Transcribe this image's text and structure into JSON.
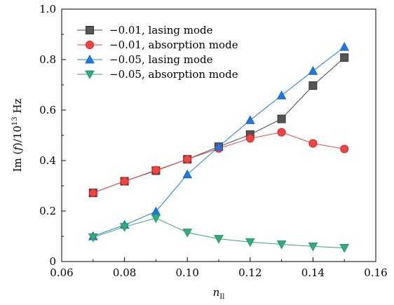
{
  "chart_data": {
    "type": "line",
    "xlabel_main": "n",
    "xlabel_sub": "Il",
    "ylabel_pre": "Im (",
    "ylabel_var": "f",
    "ylabel_mid": ")/10",
    "ylabel_exp": "13",
    "ylabel_unit": " Hz",
    "xlim": [
      0.06,
      0.16
    ],
    "ylim": [
      0,
      1.0
    ],
    "x_ticks": [
      "0.06",
      "0.08",
      "0.10",
      "0.12",
      "0.14",
      "0.16"
    ],
    "y_ticks": [
      "0",
      "0.2",
      "0.4",
      "0.6",
      "0.8",
      "1.0"
    ],
    "x_tick_values": [
      0.06,
      0.08,
      0.1,
      0.12,
      0.14,
      0.16
    ],
    "y_tick_values": [
      0,
      0.2,
      0.4,
      0.6,
      0.8,
      1.0
    ],
    "legend_position": "top-left",
    "series": [
      {
        "name": "−0.01, lasing mode",
        "marker": "square",
        "color": "#555555",
        "edge": "#333333",
        "line_color": "#444444",
        "x": [
          0.07,
          0.08,
          0.09,
          0.1,
          0.11,
          0.12,
          0.13,
          0.14,
          0.15
        ],
        "y": [
          0.272,
          0.318,
          0.36,
          0.405,
          0.455,
          0.503,
          0.565,
          0.697,
          0.808
        ]
      },
      {
        "name": "−0.01, absorption mode",
        "marker": "circle",
        "color": "#ee4444",
        "edge": "#dd2222",
        "line_color": "#ee4444",
        "x": [
          0.07,
          0.08,
          0.09,
          0.1,
          0.11,
          0.12,
          0.13,
          0.14,
          0.15
        ],
        "y": [
          0.272,
          0.318,
          0.362,
          0.405,
          0.448,
          0.488,
          0.512,
          0.468,
          0.446
        ]
      },
      {
        "name": "−0.05, lasing mode",
        "marker": "triangle-up",
        "color": "#2277dd",
        "edge": "#1166cc",
        "line_color": "#2277dd",
        "x": [
          0.07,
          0.08,
          0.09,
          0.1,
          0.11,
          0.12,
          0.13,
          0.14,
          0.15
        ],
        "y": [
          0.1,
          0.145,
          0.198,
          0.345,
          0.455,
          0.56,
          0.658,
          0.755,
          0.85
        ]
      },
      {
        "name": "−0.05, absorption mode",
        "marker": "triangle-down",
        "color": "#33aa77",
        "edge": "#229966",
        "line_color": "#33aa77",
        "x": [
          0.07,
          0.08,
          0.09,
          0.1,
          0.11,
          0.12,
          0.13,
          0.14,
          0.15
        ],
        "y": [
          0.096,
          0.137,
          0.172,
          0.115,
          0.09,
          0.077,
          0.068,
          0.06,
          0.054
        ]
      }
    ]
  }
}
